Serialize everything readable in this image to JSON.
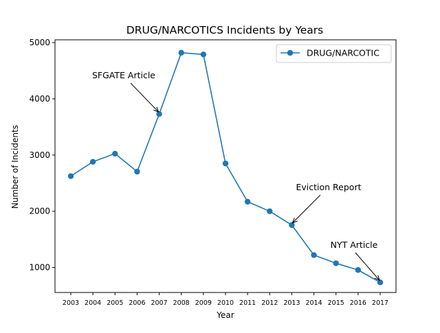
{
  "chart_data": {
    "type": "line",
    "title": "DRUG/NARCOTICS Incidents by Years",
    "xlabel": "Year",
    "ylabel": "Number of Incidents",
    "x": [
      "2003",
      "2004",
      "2005",
      "2006",
      "2007",
      "2008",
      "2009",
      "2010",
      "2011",
      "2012",
      "2013",
      "2014",
      "2015",
      "2016",
      "2017"
    ],
    "series": [
      {
        "name": "DRUG/NARCOTIC",
        "values": [
          2625,
          2880,
          3025,
          2705,
          3730,
          4820,
          4790,
          2850,
          2170,
          2000,
          1755,
          1220,
          1075,
          955,
          735
        ],
        "color": "#1f77b4",
        "marker": "circle"
      }
    ],
    "yticks": [
      1000,
      2000,
      3000,
      4000,
      5000
    ],
    "ylim": [
      555,
      5050
    ],
    "grid": false,
    "legend": "top-right",
    "annotations": [
      {
        "text": "SFGATE Article",
        "x": "2007",
        "y": 3730
      },
      {
        "text": "Eviction Report",
        "x": "2013",
        "y": 1755
      },
      {
        "text": "NYT Article",
        "x": "2017",
        "y": 735
      }
    ]
  }
}
